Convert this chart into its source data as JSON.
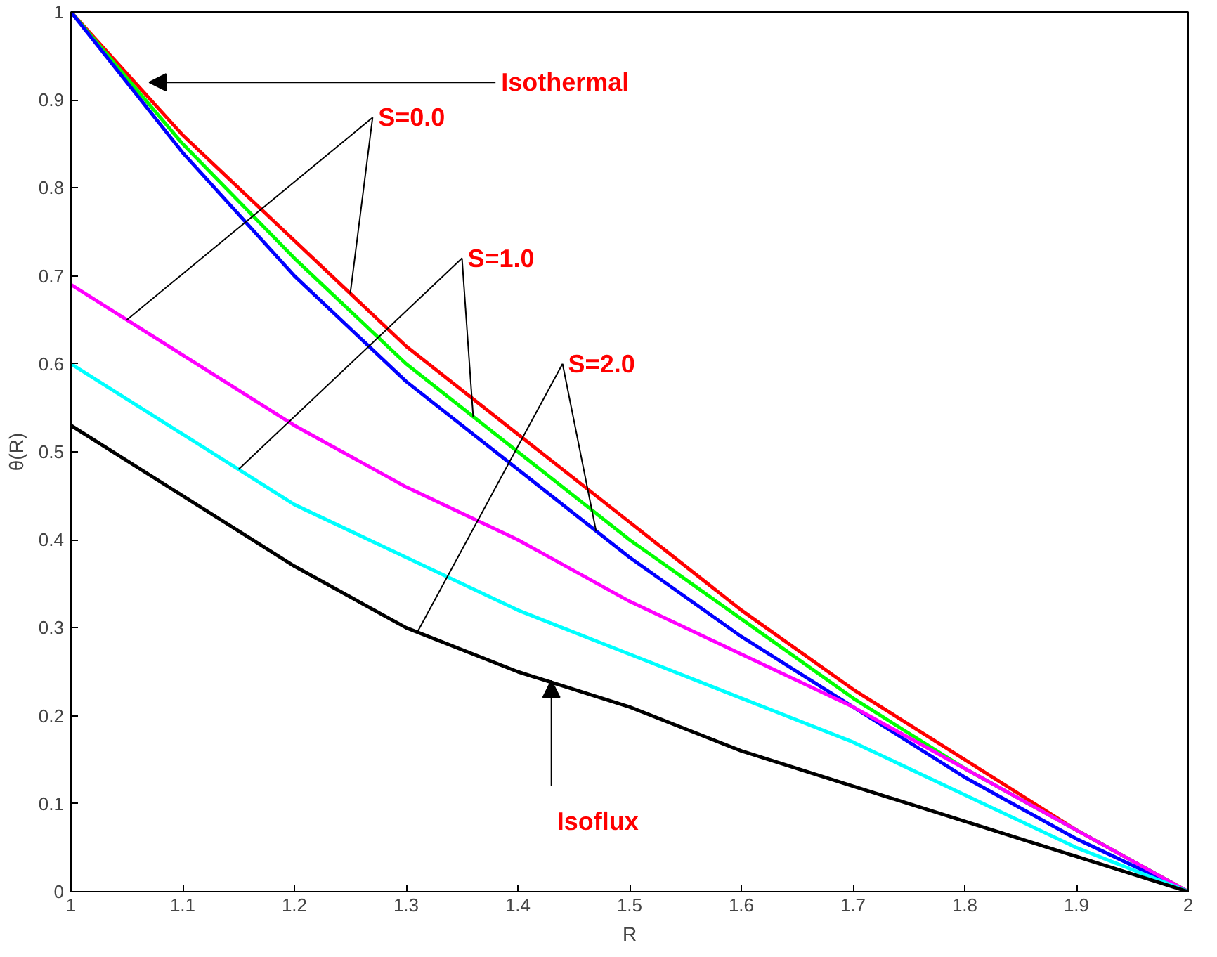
{
  "chart_data": {
    "type": "line",
    "xlabel": "R",
    "ylabel": "θ(R)",
    "x": [
      1.0,
      1.1,
      1.2,
      1.3,
      1.4,
      1.5,
      1.6,
      1.7,
      1.8,
      1.9,
      2.0
    ],
    "series": [
      {
        "color": "#ff0000",
        "values": [
          1,
          0.86,
          0.74,
          0.62,
          0.52,
          0.42,
          0.32,
          0.23,
          0.15,
          0.07,
          0
        ]
      },
      {
        "color": "#00ff00",
        "values": [
          1,
          0.85,
          0.72,
          0.6,
          0.5,
          0.4,
          0.31,
          0.22,
          0.14,
          0.07,
          0
        ]
      },
      {
        "color": "#0000ff",
        "values": [
          1,
          0.84,
          0.7,
          0.58,
          0.48,
          0.38,
          0.29,
          0.21,
          0.13,
          0.06,
          0
        ]
      },
      {
        "color": "#ff00ff",
        "values": [
          0.69,
          0.61,
          0.53,
          0.46,
          0.4,
          0.33,
          0.27,
          0.21,
          0.14,
          0.07,
          0
        ]
      },
      {
        "color": "#00ffff",
        "values": [
          0.6,
          0.52,
          0.44,
          0.38,
          0.32,
          0.27,
          0.22,
          0.17,
          0.11,
          0.05,
          0
        ]
      },
      {
        "color": "#000000",
        "values": [
          0.53,
          0.45,
          0.37,
          0.3,
          0.25,
          0.21,
          0.16,
          0.12,
          0.08,
          0.04,
          0
        ]
      }
    ],
    "xlim": [
      1,
      2
    ],
    "ylim": [
      0,
      1
    ],
    "xticks": [
      1,
      1.1,
      1.2,
      1.3,
      1.4,
      1.5,
      1.6,
      1.7,
      1.8,
      1.9,
      2
    ],
    "yticks": [
      0,
      0.1,
      0.2,
      0.3,
      0.4,
      0.5,
      0.6,
      0.7,
      0.8,
      0.9,
      1
    ],
    "grid": false,
    "marker": "none",
    "line_style": "solid",
    "annotations": [
      "Isothermal",
      {
        "text": "S=0.0",
        "x": 1.25,
        "y": 0.68
      },
      {
        "text": "S=1.0",
        "x": 1.36,
        "y": 0.54
      },
      {
        "text": "S=2.0",
        "x": 1.47,
        "y": 0.41
      },
      {
        "text": "Isoflux",
        "x": 1.43,
        "y": 0.24
      }
    ]
  }
}
